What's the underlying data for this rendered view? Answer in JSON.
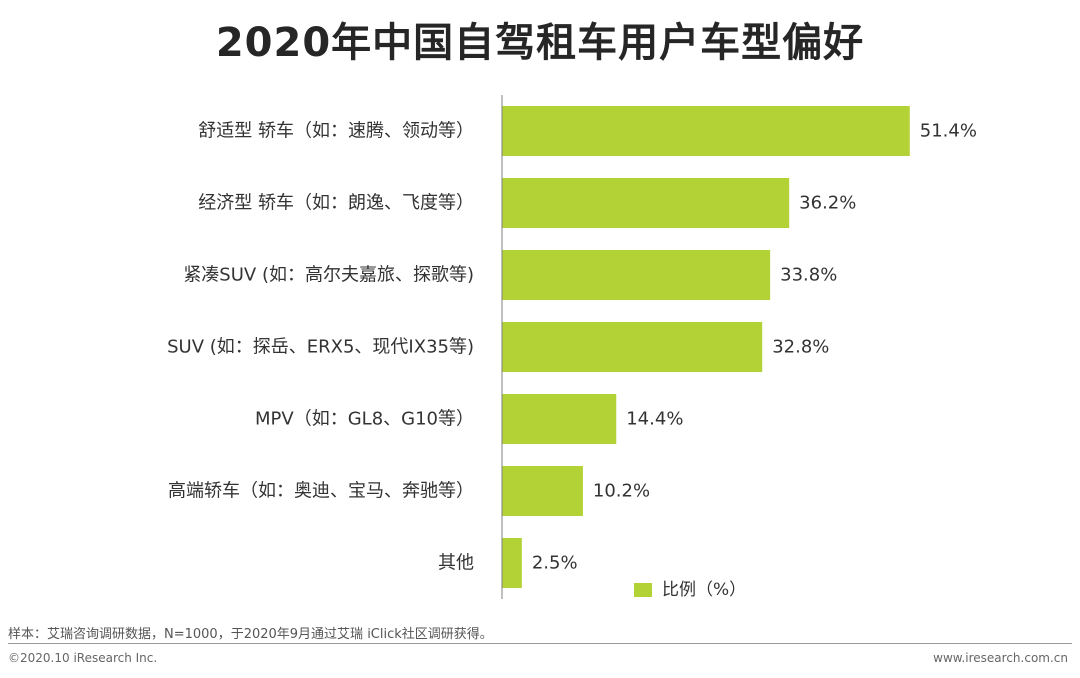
{
  "chart_data": {
    "type": "bar",
    "orientation": "horizontal",
    "title": "2020年中国自驾租车用户车型偏好",
    "categories": [
      "舒适型 轿车（如：速腾、领动等）",
      "经济型 轿车（如：朗逸、飞度等）",
      "紧凑SUV (如：高尔夫嘉旅、探歌等)",
      "SUV (如：探岳、ERX5、现代IX35等)",
      "MPV（如：GL8、G10等）",
      "高端轿车（如：奥迪、宝马、奔驰等）",
      "其他"
    ],
    "values": [
      51.4,
      36.2,
      33.8,
      32.8,
      14.4,
      10.2,
      2.5
    ],
    "value_labels": [
      "51.4%",
      "36.2%",
      "33.8%",
      "32.8%",
      "14.4%",
      "10.2%",
      "2.5%"
    ],
    "series_name": "比例（%）",
    "xlim": [
      0,
      60
    ],
    "grid": false,
    "legend_position": "bottom-right",
    "bar_color": "#b2d235"
  },
  "footnote": "样本：艾瑞咨询调研数据，N=1000，于2020年9月通过艾瑞 iClick社区调研获得。",
  "copyright": "©2020.10 iResearch Inc.",
  "website": "www.iresearch.com.cn"
}
